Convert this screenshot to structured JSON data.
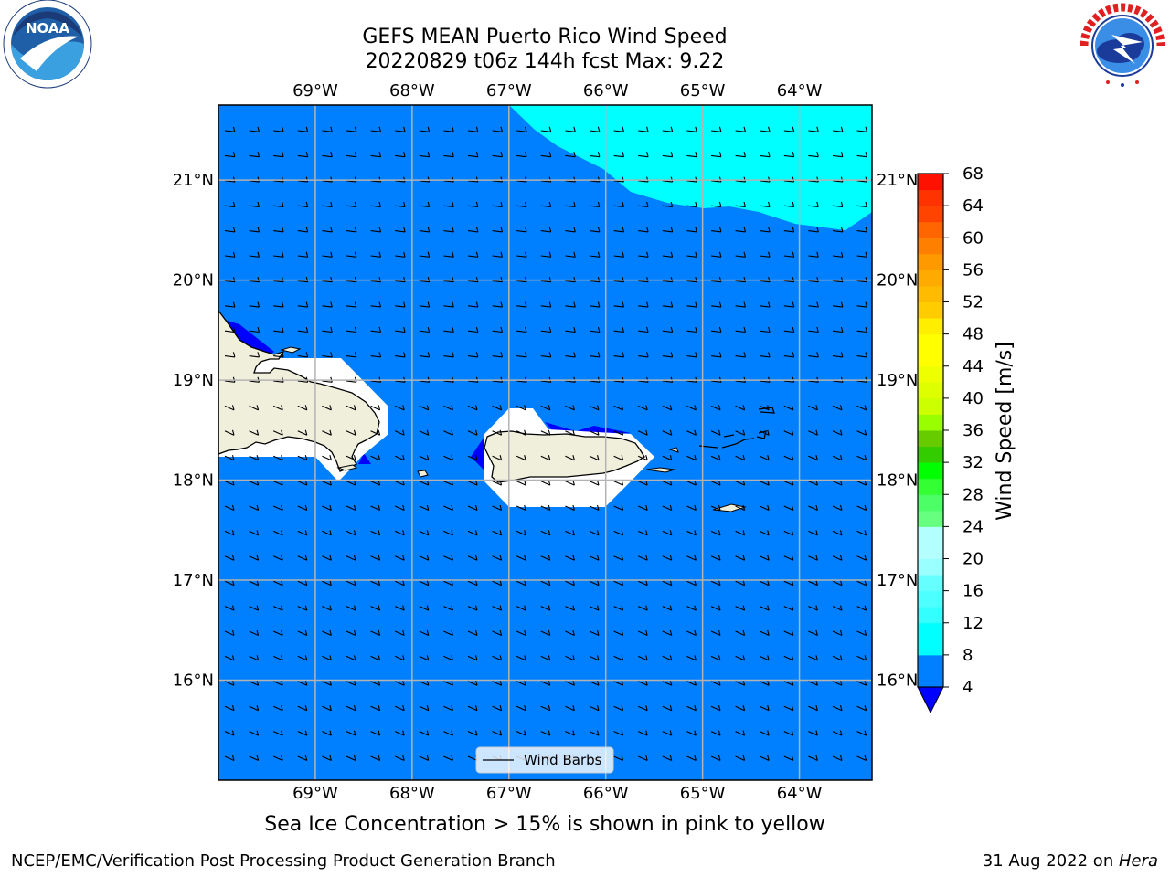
{
  "title": {
    "line1": "GEFS MEAN Puerto Rico Wind Speed",
    "line2": "20220829 t06z 144h fcst   Max: 9.22"
  },
  "logos": {
    "left": {
      "name": "noaa-logo",
      "text": "NOAA",
      "ring_text": "NATIONAL OCEANIC AND ATMOSPHERIC ADMINISTRATION · U.S. DEPARTMENT OF COMMERCE"
    },
    "right": {
      "name": "nws-logo",
      "ring_text": "NATIONAL WEATHER SERVICE"
    }
  },
  "map": {
    "lon_labels": [
      "69°W",
      "68°W",
      "67°W",
      "66°W",
      "65°W",
      "64°W"
    ],
    "lon_values": [
      -69,
      -68,
      -67,
      -66,
      -65,
      -64
    ],
    "lat_labels": [
      "16°N",
      "17°N",
      "18°N",
      "19°N",
      "20°N",
      "21°N"
    ],
    "lat_values": [
      16,
      17,
      18,
      19,
      20,
      21
    ],
    "extent": {
      "lon": [
        -70,
        -63.25
      ],
      "lat": [
        15.0,
        21.75
      ]
    },
    "ocean_color": "#0080ff",
    "high_wind_color": "#00ffff",
    "low_wind_color": "#0000ff",
    "land_color": "#efefdc",
    "grid": true,
    "legend_label": "Wind Barbs",
    "legend_position": "bottom-center"
  },
  "colorbar": {
    "label": "Wind Speed [m/s]",
    "ticks": [
      "4",
      "8",
      "12",
      "16",
      "20",
      "24",
      "28",
      "32",
      "36",
      "40",
      "44",
      "48",
      "52",
      "56",
      "60",
      "64",
      "68"
    ],
    "levels": [
      4,
      8,
      10,
      12,
      14,
      16,
      18,
      20,
      24,
      26,
      28,
      30,
      32,
      34,
      36,
      38,
      40,
      42,
      44,
      46,
      48,
      50,
      52,
      54,
      56,
      58,
      60,
      62,
      64,
      66,
      68
    ],
    "colors": [
      "#0080ff",
      "#00ffff",
      "#00ffff",
      "#33ffff",
      "#4dffff",
      "#66ffff",
      "#99ffff",
      "#b3ffff",
      "#66ff80",
      "#4dff66",
      "#33ff33",
      "#00ff00",
      "#33cc00",
      "#66cc00",
      "#99ff00",
      "#ccff00",
      "#ddff00",
      "#eeff00",
      "#ffff00",
      "#ffff00",
      "#ffee00",
      "#ffcc00",
      "#ffbb00",
      "#ffaa00",
      "#ff9900",
      "#ff8000",
      "#ff6600",
      "#ff4400",
      "#ff3300",
      "#ff1100"
    ],
    "extend_color": "#0000ff"
  },
  "subtitle": "Sea Ice Concentration > 15% is shown in pink to yellow",
  "footer": {
    "left": "NCEP/EMC/Verification Post Processing Product Generation Branch",
    "right_date": "31 Aug 2022 on ",
    "right_machine": "Hera"
  }
}
